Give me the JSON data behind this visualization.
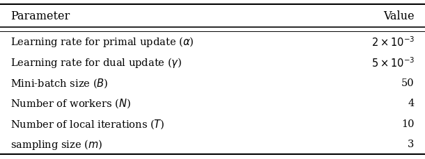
{
  "title_left": "PARAMETER",
  "title_right": "VALUE",
  "header_left_sc": "Parameter",
  "header_right_sc": "Value",
  "rows_left": [
    "Learning rate for primal update (α)",
    "Learning rate for dual update (γ)",
    "Mini-batch size (B)",
    "Number of workers (N)",
    "Number of local iterations (T)",
    "sampling size (m)"
  ],
  "rows_right": [
    "2 × 10⁻³",
    "5 × 10⁻³",
    "50",
    "4",
    "10",
    "3"
  ],
  "rows_left_math": [
    "Learning rate for primal update ($\\alpha$)",
    "Learning rate for dual update ($\\gamma$)",
    "Mini-batch size ($B$)",
    "Number of workers ($N$)",
    "Number of local iterations ($T$)",
    "sampling size ($m$)"
  ],
  "rows_right_math": [
    "$2 \\times 10^{-3}$",
    "$5 \\times 10^{-3}$",
    "50",
    "4",
    "10",
    "3"
  ],
  "bg_color": "#ffffff",
  "text_color": "#000000",
  "header_fontsize": 11.5,
  "row_fontsize": 10.5,
  "fig_width": 6.1,
  "fig_height": 2.3,
  "dpi": 100
}
